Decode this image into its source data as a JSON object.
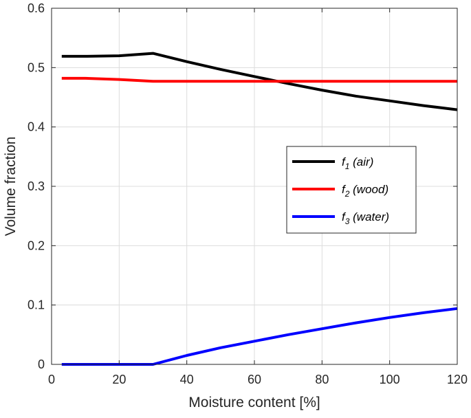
{
  "chart_data": {
    "type": "line",
    "title": "",
    "xlabel": "Moisture content [%]",
    "ylabel": "Volume fraction",
    "xlim": [
      0,
      120
    ],
    "ylim": [
      0,
      0.6
    ],
    "xticks": [
      0,
      20,
      40,
      60,
      80,
      100,
      120
    ],
    "xtick_labels": [
      "0",
      "20",
      "40",
      "60",
      "80",
      "100",
      "120"
    ],
    "yticks": [
      0,
      0.1,
      0.2,
      0.3,
      0.4,
      0.5,
      0.6
    ],
    "ytick_labels": [
      "0",
      "0.1",
      "0.2",
      "0.3",
      "0.4",
      "0.5",
      "0.6"
    ],
    "grid": true,
    "legend_position": "center-right",
    "series": [
      {
        "name": "f1 (air)",
        "label_main": "f",
        "label_sub": "1",
        "label_rest": " (air)",
        "color": "#000000",
        "x": [
          3,
          10,
          20,
          30,
          40,
          50,
          60,
          70,
          80,
          90,
          100,
          110,
          120
        ],
        "y": [
          0.519,
          0.519,
          0.52,
          0.524,
          0.51,
          0.497,
          0.485,
          0.473,
          0.462,
          0.452,
          0.444,
          0.436,
          0.429
        ]
      },
      {
        "name": "f2 (wood)",
        "label_main": "f",
        "label_sub": "2",
        "label_rest": " (wood)",
        "color": "#ff0000",
        "x": [
          3,
          10,
          20,
          30,
          40,
          60,
          80,
          100,
          120
        ],
        "y": [
          0.482,
          0.482,
          0.48,
          0.477,
          0.477,
          0.477,
          0.477,
          0.477,
          0.477
        ]
      },
      {
        "name": "f3 (water)",
        "label_main": "f",
        "label_sub": "3",
        "label_rest": " (water)",
        "color": "#0000ff",
        "x": [
          3,
          10,
          20,
          30,
          40,
          50,
          60,
          70,
          80,
          90,
          100,
          110,
          120
        ],
        "y": [
          0,
          0,
          0,
          0,
          0.015,
          0.028,
          0.039,
          0.05,
          0.06,
          0.07,
          0.079,
          0.087,
          0.094
        ]
      }
    ]
  }
}
